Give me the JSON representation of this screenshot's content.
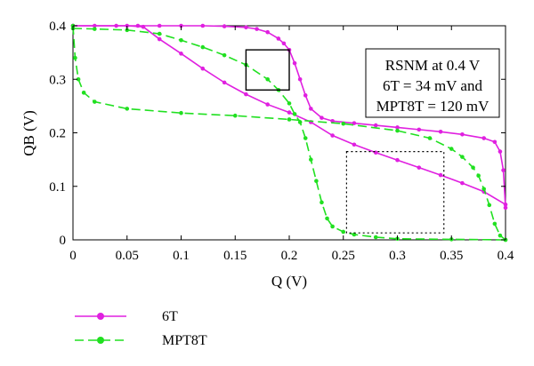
{
  "chart_data": {
    "type": "line",
    "xlabel": "Q (V)",
    "ylabel": "QB (V)",
    "xlim": [
      0,
      0.4
    ],
    "ylim": [
      0,
      0.4
    ],
    "xticks": [
      "0",
      "0.05",
      "0.1",
      "0.15",
      "0.2",
      "0.25",
      "0.3",
      "0.35",
      "0.4"
    ],
    "yticks": [
      "0",
      "0.1",
      "0.2",
      "0.3",
      "0.4"
    ],
    "grid": false,
    "legend_position": "bottom-left",
    "annotation": [
      "RSNM at 0.4 V",
      "6T = 34 mV and",
      "MPT8T = 120 mV"
    ],
    "series": [
      {
        "name": "6T",
        "color": "#e020e0",
        "marker": "circle",
        "line": "solid",
        "curves": [
          {
            "x": [
              0,
              0.02,
              0.04,
              0.06,
              0.08,
              0.1,
              0.12,
              0.14,
              0.16,
              0.17,
              0.18,
              0.19,
              0.195,
              0.2,
              0.205,
              0.21,
              0.215,
              0.22,
              0.23,
              0.24,
              0.26,
              0.28,
              0.3,
              0.32,
              0.34,
              0.36,
              0.38,
              0.39,
              0.395,
              0.398,
              0.4
            ],
            "y": [
              0.4,
              0.4,
              0.4,
              0.4,
              0.4,
              0.4,
              0.4,
              0.399,
              0.397,
              0.394,
              0.388,
              0.376,
              0.367,
              0.355,
              0.33,
              0.3,
              0.27,
              0.245,
              0.228,
              0.222,
              0.218,
              0.214,
              0.21,
              0.206,
              0.202,
              0.197,
              0.19,
              0.183,
              0.165,
              0.13,
              0.06
            ]
          },
          {
            "x": [
              0,
              0.05,
              0.065,
              0.08,
              0.1,
              0.12,
              0.14,
              0.16,
              0.18,
              0.2,
              0.22,
              0.24,
              0.26,
              0.28,
              0.3,
              0.32,
              0.34,
              0.36,
              0.38,
              0.4
            ],
            "y": [
              0.4,
              0.4,
              0.398,
              0.375,
              0.348,
              0.32,
              0.294,
              0.272,
              0.253,
              0.238,
              0.22,
              0.195,
              0.178,
              0.163,
              0.149,
              0.135,
              0.121,
              0.106,
              0.09,
              0.066
            ]
          }
        ]
      },
      {
        "name": "MPT8T",
        "color": "#20e020",
        "marker": "circle",
        "line": "dashed",
        "curves": [
          {
            "x": [
              0,
              0.02,
              0.05,
              0.08,
              0.1,
              0.12,
              0.14,
              0.16,
              0.18,
              0.19,
              0.2,
              0.205,
              0.21,
              0.215,
              0.22,
              0.225,
              0.23,
              0.235,
              0.24,
              0.25,
              0.26,
              0.28,
              0.3,
              0.35,
              0.4
            ],
            "y": [
              0.395,
              0.394,
              0.392,
              0.385,
              0.373,
              0.36,
              0.345,
              0.327,
              0.3,
              0.28,
              0.255,
              0.235,
              0.22,
              0.19,
              0.15,
              0.11,
              0.07,
              0.04,
              0.025,
              0.015,
              0.01,
              0.005,
              0.002,
              0.001,
              0
            ]
          },
          {
            "x": [
              0,
              0.002,
              0.005,
              0.01,
              0.02,
              0.05,
              0.1,
              0.15,
              0.2,
              0.25,
              0.3,
              0.33,
              0.35,
              0.36,
              0.37,
              0.375,
              0.38,
              0.385,
              0.39,
              0.395,
              0.4
            ],
            "y": [
              0.4,
              0.34,
              0.3,
              0.275,
              0.258,
              0.245,
              0.237,
              0.232,
              0.225,
              0.217,
              0.204,
              0.19,
              0.17,
              0.155,
              0.135,
              0.12,
              0.095,
              0.065,
              0.03,
              0.008,
              0
            ]
          }
        ]
      }
    ]
  }
}
